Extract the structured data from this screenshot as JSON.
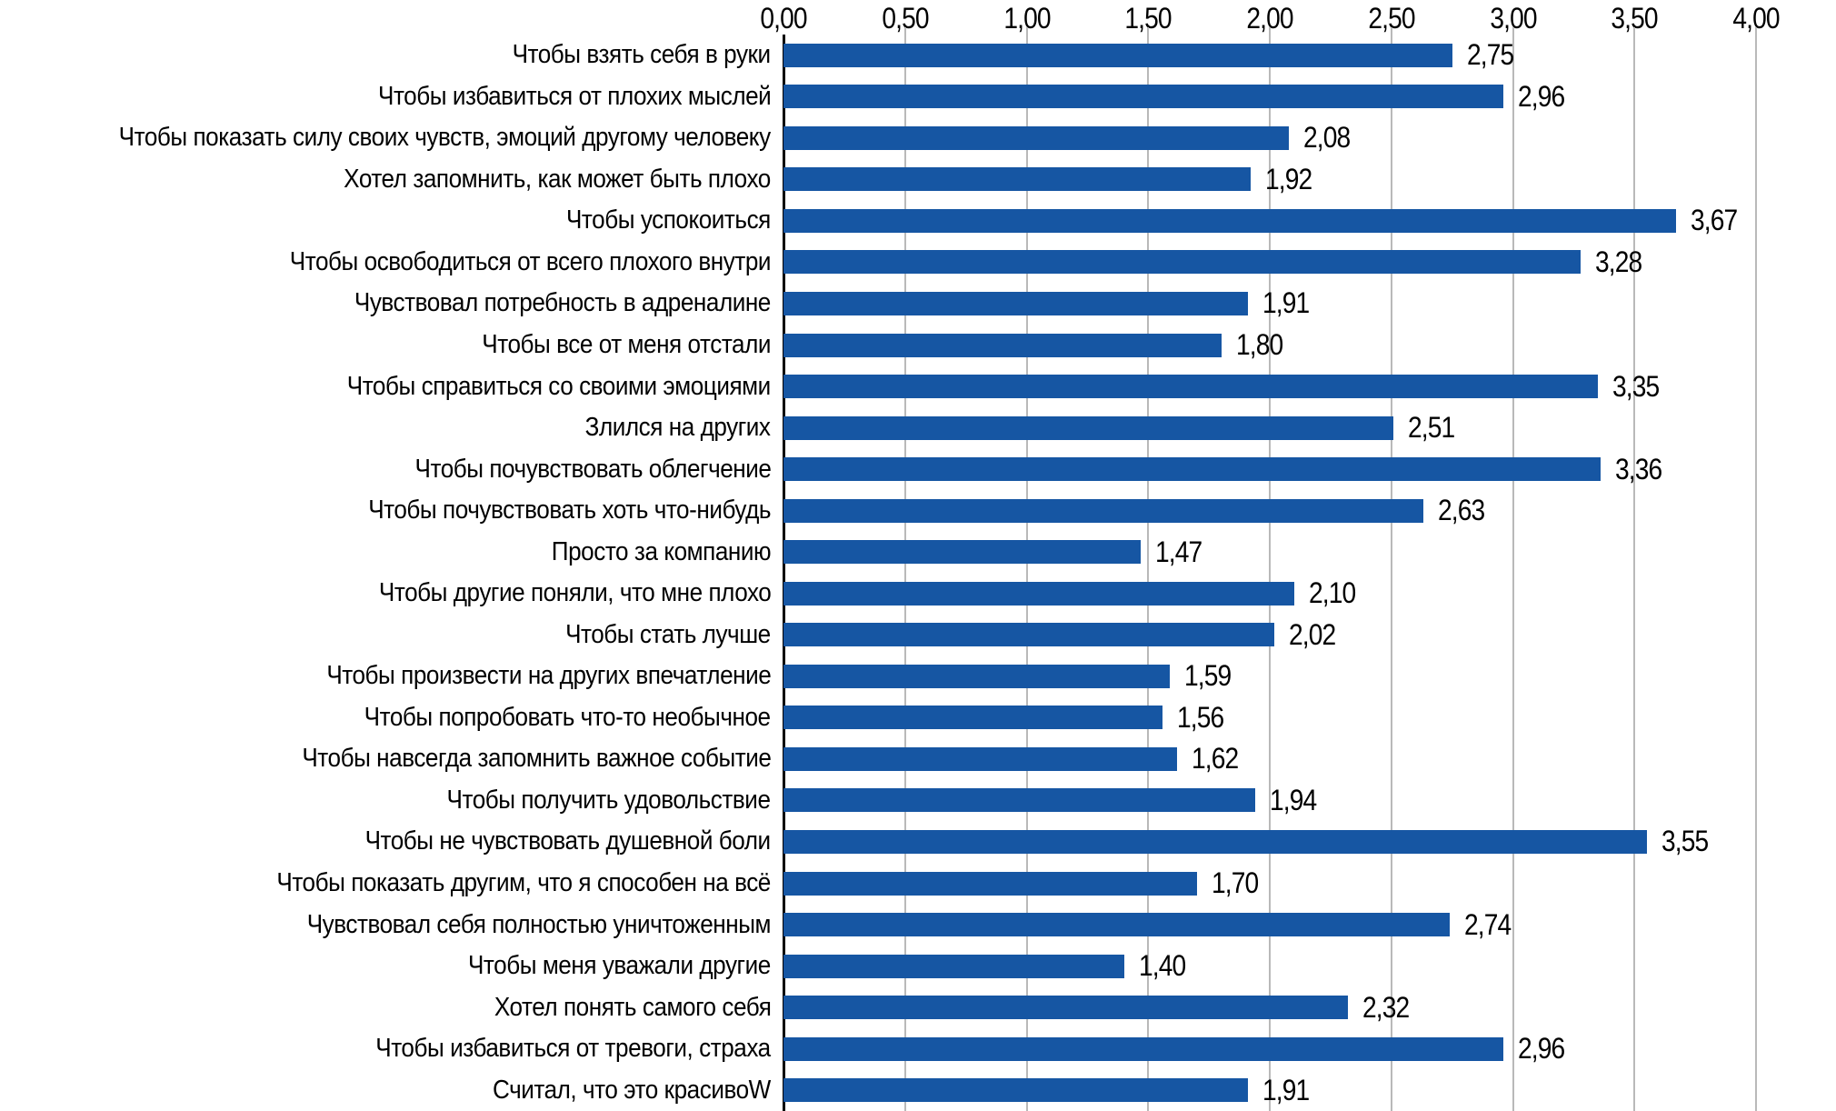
{
  "chart_data": {
    "type": "bar",
    "orientation": "horizontal",
    "title": "",
    "xlabel": "",
    "ylabel": "",
    "categories": [
      "Чтобы взять себя в руки",
      "Чтобы избавиться от плохих мыслей",
      "Чтобы показать силу своих чувств, эмоций другому человеку",
      "Хотел запомнить, как может быть плохо",
      "Чтобы успокоиться",
      "Чтобы освободиться от всего плохого внутри",
      "Чувствовал потребность в адреналине",
      "Чтобы все от меня отстали",
      "Чтобы справиться со своими эмоциями",
      "Злился на других",
      "Чтобы почувствовать облегчение",
      "Чтобы почувствовать хоть что-нибудь",
      "Просто за компанию",
      "Чтобы другие поняли, что мне плохо",
      "Чтобы стать лучше",
      "Чтобы произвести на других впечатление",
      "Чтобы попробовать что-то необычное",
      "Чтобы навсегда запомнить важное событие",
      "Чтобы получить удовольствие",
      "Чтобы не чувствовать душевной боли",
      "Чтобы показать другим, что я способен на всё",
      "Чувствовал себя полностью уничтоженным",
      "Чтобы меня уважали другие",
      "Хотел понять самого себя",
      "Чтобы избавиться от тревоги, страха",
      "Считал, что это красивоW"
    ],
    "values": [
      2.75,
      2.96,
      2.08,
      1.92,
      3.67,
      3.28,
      1.91,
      1.8,
      3.35,
      2.51,
      3.36,
      2.63,
      1.47,
      2.1,
      2.02,
      1.59,
      1.56,
      1.62,
      1.94,
      3.55,
      1.7,
      2.74,
      1.4,
      2.32,
      2.96,
      1.91
    ],
    "value_labels": [
      "2,75",
      "2,96",
      "2,08",
      "1,92",
      "3,67",
      "3,28",
      "1,91",
      "1,80",
      "3,35",
      "2,51",
      "3,36",
      "2,63",
      "1,47",
      "2,10",
      "2,02",
      "1,59",
      "1,56",
      "1,62",
      "1,94",
      "3,55",
      "1,70",
      "2,74",
      "1,40",
      "2,32",
      "2,96",
      "1,91"
    ],
    "xlim": [
      0,
      4
    ],
    "x_tick_step": 0.5,
    "x_tick_labels": [
      "0,00",
      "0,50",
      "1,00",
      "1,50",
      "2,00",
      "2,50",
      "3,00",
      "3,50",
      "4,00"
    ],
    "axis_position": "top",
    "grid": "vertical-only",
    "legend": "none",
    "colors": {
      "bar": "#1656A3",
      "gridline": "#B9B9B9",
      "axis_line": "#000000",
      "text": "#000000",
      "background": "#FFFFFF"
    }
  }
}
